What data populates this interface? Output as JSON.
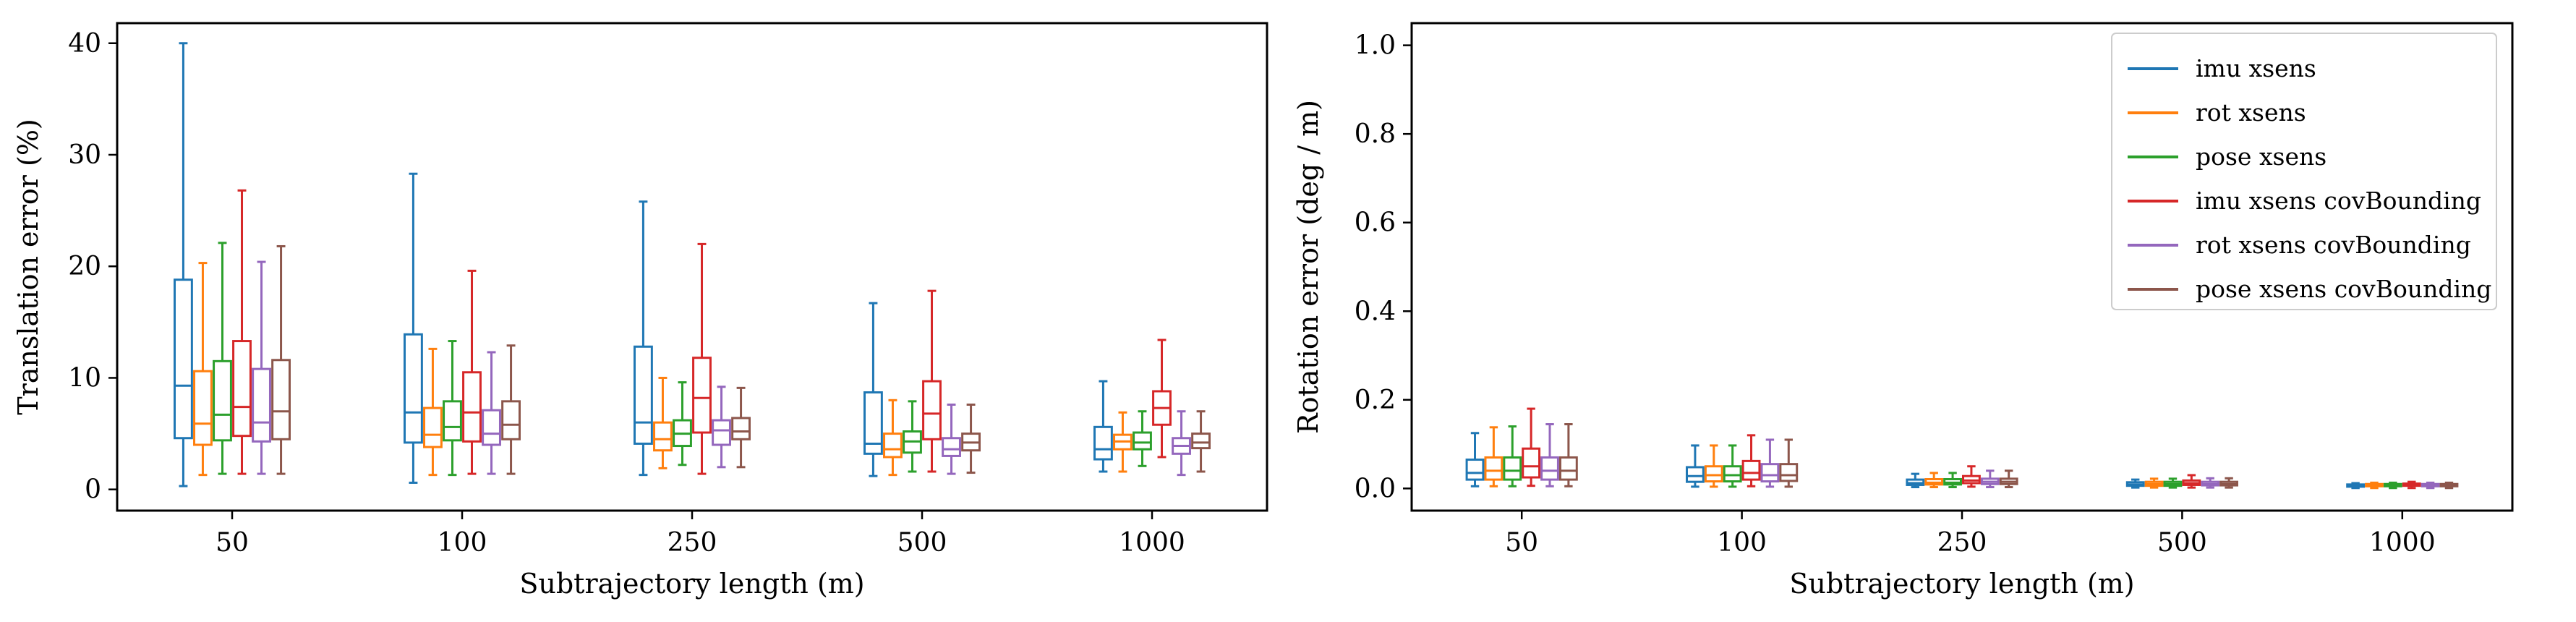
{
  "chart_data": [
    {
      "type": "box",
      "xlabel": "Subtrajectory length (m)",
      "ylabel": "Translation error (%)",
      "ylim": [
        -1.9,
        41.8
      ],
      "yticks": [
        "0",
        "10",
        "20",
        "30",
        "40"
      ],
      "categories": [
        "50",
        "100",
        "250",
        "500",
        "1000"
      ],
      "grid": false,
      "legend": "none",
      "series": [
        {
          "name": "imu xsens",
          "color": "#1f77b4",
          "boxes": [
            {
              "whislo": 0.3,
              "q1": 4.6,
              "med": 9.3,
              "q3": 18.8,
              "whishi": 40.0
            },
            {
              "whislo": 0.6,
              "q1": 4.2,
              "med": 6.9,
              "q3": 13.9,
              "whishi": 28.3
            },
            {
              "whislo": 1.3,
              "q1": 4.1,
              "med": 6.0,
              "q3": 12.8,
              "whishi": 25.8
            },
            {
              "whislo": 1.2,
              "q1": 3.2,
              "med": 4.1,
              "q3": 8.7,
              "whishi": 16.7
            },
            {
              "whislo": 1.6,
              "q1": 2.7,
              "med": 3.6,
              "q3": 5.6,
              "whishi": 9.7
            }
          ]
        },
        {
          "name": "rot xsens",
          "color": "#ff7f0e",
          "boxes": [
            {
              "whislo": 1.3,
              "q1": 4.0,
              "med": 5.9,
              "q3": 10.6,
              "whishi": 20.3
            },
            {
              "whislo": 1.3,
              "q1": 3.8,
              "med": 4.9,
              "q3": 7.3,
              "whishi": 12.6
            },
            {
              "whislo": 1.9,
              "q1": 3.5,
              "med": 4.5,
              "q3": 6.0,
              "whishi": 10.0
            },
            {
              "whislo": 1.3,
              "q1": 2.9,
              "med": 3.6,
              "q3": 5.0,
              "whishi": 8.0
            },
            {
              "whislo": 1.6,
              "q1": 3.6,
              "med": 4.3,
              "q3": 4.9,
              "whishi": 6.9
            }
          ]
        },
        {
          "name": "pose xsens",
          "color": "#2ca02c",
          "boxes": [
            {
              "whislo": 1.4,
              "q1": 4.4,
              "med": 6.7,
              "q3": 11.5,
              "whishi": 22.1
            },
            {
              "whislo": 1.3,
              "q1": 4.4,
              "med": 5.6,
              "q3": 7.9,
              "whishi": 13.3
            },
            {
              "whislo": 2.2,
              "q1": 3.9,
              "med": 5.0,
              "q3": 6.2,
              "whishi": 9.6
            },
            {
              "whislo": 1.6,
              "q1": 3.3,
              "med": 4.3,
              "q3": 5.2,
              "whishi": 7.9
            },
            {
              "whislo": 2.1,
              "q1": 3.6,
              "med": 4.2,
              "q3": 5.1,
              "whishi": 7.0
            }
          ]
        },
        {
          "name": "imu xsens covBounding",
          "color": "#d62728",
          "boxes": [
            {
              "whislo": 1.4,
              "q1": 4.8,
              "med": 7.4,
              "q3": 13.3,
              "whishi": 26.8
            },
            {
              "whislo": 1.4,
              "q1": 4.3,
              "med": 6.9,
              "q3": 10.5,
              "whishi": 19.6
            },
            {
              "whislo": 1.4,
              "q1": 5.1,
              "med": 8.2,
              "q3": 11.8,
              "whishi": 22.0
            },
            {
              "whislo": 1.6,
              "q1": 4.5,
              "med": 6.8,
              "q3": 9.7,
              "whishi": 17.8
            },
            {
              "whislo": 2.9,
              "q1": 5.8,
              "med": 7.3,
              "q3": 8.8,
              "whishi": 13.4
            }
          ]
        },
        {
          "name": "rot xsens covBounding",
          "color": "#9467bd",
          "boxes": [
            {
              "whislo": 1.4,
              "q1": 4.3,
              "med": 6.0,
              "q3": 10.8,
              "whishi": 20.4
            },
            {
              "whislo": 1.4,
              "q1": 4.0,
              "med": 5.0,
              "q3": 7.1,
              "whishi": 12.3
            },
            {
              "whislo": 2.0,
              "q1": 4.0,
              "med": 5.3,
              "q3": 6.2,
              "whishi": 9.2
            },
            {
              "whislo": 1.4,
              "q1": 3.0,
              "med": 3.6,
              "q3": 4.6,
              "whishi": 7.6
            },
            {
              "whislo": 1.3,
              "q1": 3.2,
              "med": 3.9,
              "q3": 4.6,
              "whishi": 7.0
            }
          ]
        },
        {
          "name": "pose xsens covBounding",
          "color": "#8c564b",
          "boxes": [
            {
              "whislo": 1.4,
              "q1": 4.5,
              "med": 7.0,
              "q3": 11.6,
              "whishi": 21.8
            },
            {
              "whislo": 1.4,
              "q1": 4.5,
              "med": 5.8,
              "q3": 7.9,
              "whishi": 12.9
            },
            {
              "whislo": 2.0,
              "q1": 4.5,
              "med": 5.2,
              "q3": 6.4,
              "whishi": 9.1
            },
            {
              "whislo": 1.5,
              "q1": 3.5,
              "med": 4.2,
              "q3": 5.0,
              "whishi": 7.6
            },
            {
              "whislo": 1.6,
              "q1": 3.7,
              "med": 4.2,
              "q3": 5.0,
              "whishi": 7.0
            }
          ]
        }
      ]
    },
    {
      "type": "box",
      "xlabel": "Subtrajectory length (m)",
      "ylabel": "Rotation error (deg / m)",
      "ylim": [
        -0.05,
        1.05
      ],
      "yticks": [
        "0.0",
        "0.2",
        "0.4",
        "0.6",
        "0.8",
        "1.0"
      ],
      "categories": [
        "50",
        "100",
        "250",
        "500",
        "1000"
      ],
      "grid": false,
      "legend": "top-right",
      "series": [
        {
          "name": "imu xsens",
          "color": "#1f77b4",
          "boxes": [
            {
              "whislo": 0.005,
              "q1": 0.02,
              "med": 0.035,
              "q3": 0.065,
              "whishi": 0.125
            },
            {
              "whislo": 0.004,
              "q1": 0.015,
              "med": 0.028,
              "q3": 0.048,
              "whishi": 0.097
            },
            {
              "whislo": 0.003,
              "q1": 0.008,
              "med": 0.012,
              "q3": 0.02,
              "whishi": 0.033
            },
            {
              "whislo": 0.002,
              "q1": 0.006,
              "med": 0.009,
              "q3": 0.014,
              "whishi": 0.02
            },
            {
              "whislo": 0.001,
              "q1": 0.004,
              "med": 0.006,
              "q3": 0.009,
              "whishi": 0.012
            }
          ]
        },
        {
          "name": "rot xsens",
          "color": "#ff7f0e",
          "boxes": [
            {
              "whislo": 0.005,
              "q1": 0.02,
              "med": 0.04,
              "q3": 0.07,
              "whishi": 0.138
            },
            {
              "whislo": 0.004,
              "q1": 0.016,
              "med": 0.03,
              "q3": 0.05,
              "whishi": 0.097
            },
            {
              "whislo": 0.003,
              "q1": 0.009,
              "med": 0.013,
              "q3": 0.021,
              "whishi": 0.035
            },
            {
              "whislo": 0.002,
              "q1": 0.006,
              "med": 0.01,
              "q3": 0.015,
              "whishi": 0.022
            },
            {
              "whislo": 0.001,
              "q1": 0.005,
              "med": 0.007,
              "q3": 0.01,
              "whishi": 0.013
            }
          ]
        },
        {
          "name": "pose xsens",
          "color": "#2ca02c",
          "boxes": [
            {
              "whislo": 0.005,
              "q1": 0.02,
              "med": 0.04,
              "q3": 0.07,
              "whishi": 0.14
            },
            {
              "whislo": 0.004,
              "q1": 0.016,
              "med": 0.03,
              "q3": 0.05,
              "whishi": 0.097
            },
            {
              "whislo": 0.003,
              "q1": 0.009,
              "med": 0.013,
              "q3": 0.021,
              "whishi": 0.035
            },
            {
              "whislo": 0.002,
              "q1": 0.006,
              "med": 0.01,
              "q3": 0.015,
              "whishi": 0.022
            },
            {
              "whislo": 0.001,
              "q1": 0.005,
              "med": 0.007,
              "q3": 0.01,
              "whishi": 0.013
            }
          ]
        },
        {
          "name": "imu xsens covBounding",
          "color": "#d62728",
          "boxes": [
            {
              "whislo": 0.006,
              "q1": 0.025,
              "med": 0.05,
              "q3": 0.09,
              "whishi": 0.18
            },
            {
              "whislo": 0.005,
              "q1": 0.02,
              "med": 0.035,
              "q3": 0.062,
              "whishi": 0.12
            },
            {
              "whislo": 0.004,
              "q1": 0.012,
              "med": 0.018,
              "q3": 0.028,
              "whishi": 0.05
            },
            {
              "whislo": 0.002,
              "q1": 0.008,
              "med": 0.012,
              "q3": 0.018,
              "whishi": 0.03
            },
            {
              "whislo": 0.001,
              "q1": 0.006,
              "med": 0.008,
              "q3": 0.011,
              "whishi": 0.015
            }
          ]
        },
        {
          "name": "rot xsens covBounding",
          "color": "#9467bd",
          "boxes": [
            {
              "whislo": 0.005,
              "q1": 0.02,
              "med": 0.04,
              "q3": 0.07,
              "whishi": 0.145
            },
            {
              "whislo": 0.004,
              "q1": 0.016,
              "med": 0.03,
              "q3": 0.055,
              "whishi": 0.11
            },
            {
              "whislo": 0.003,
              "q1": 0.01,
              "med": 0.015,
              "q3": 0.022,
              "whishi": 0.04
            },
            {
              "whislo": 0.002,
              "q1": 0.007,
              "med": 0.01,
              "q3": 0.015,
              "whishi": 0.023
            },
            {
              "whislo": 0.001,
              "q1": 0.005,
              "med": 0.007,
              "q3": 0.01,
              "whishi": 0.013
            }
          ]
        },
        {
          "name": "pose xsens covBounding",
          "color": "#8c564b",
          "boxes": [
            {
              "whislo": 0.005,
              "q1": 0.02,
              "med": 0.04,
              "q3": 0.07,
              "whishi": 0.145
            },
            {
              "whislo": 0.004,
              "q1": 0.017,
              "med": 0.03,
              "q3": 0.055,
              "whishi": 0.11
            },
            {
              "whislo": 0.003,
              "q1": 0.01,
              "med": 0.015,
              "q3": 0.022,
              "whishi": 0.04
            },
            {
              "whislo": 0.002,
              "q1": 0.007,
              "med": 0.01,
              "q3": 0.015,
              "whishi": 0.023
            },
            {
              "whislo": 0.001,
              "q1": 0.005,
              "med": 0.007,
              "q3": 0.01,
              "whishi": 0.013
            }
          ]
        }
      ]
    }
  ]
}
